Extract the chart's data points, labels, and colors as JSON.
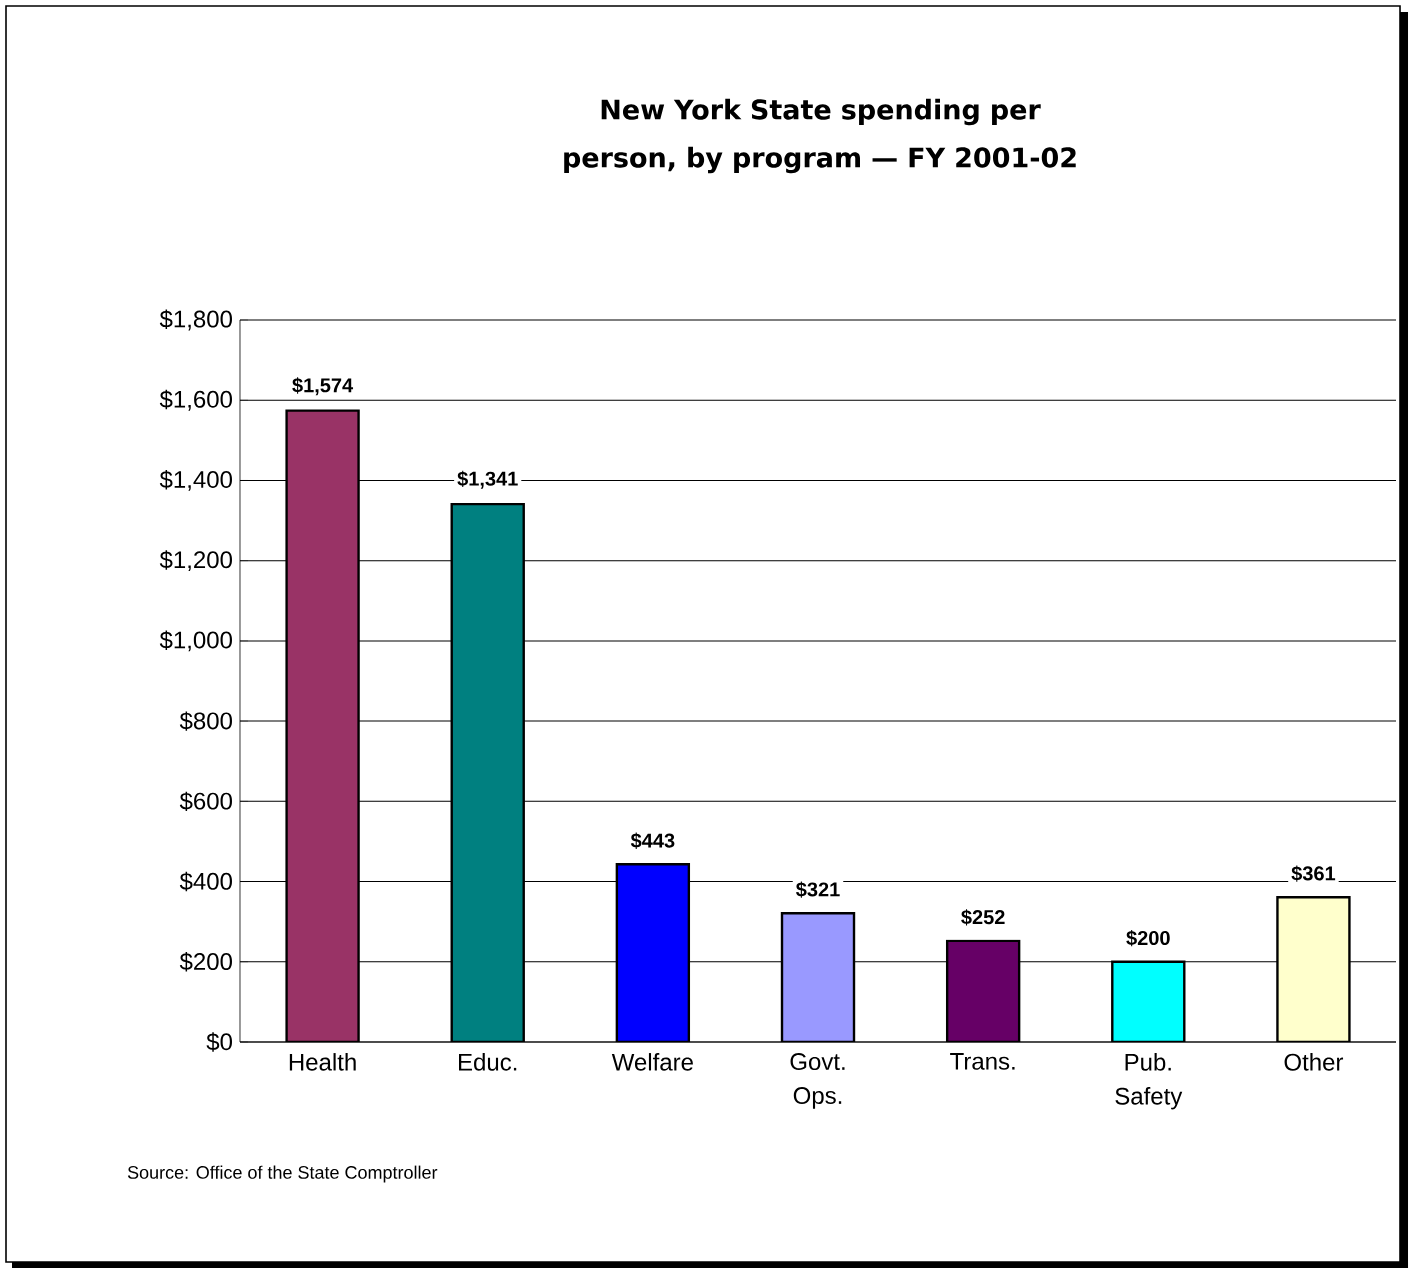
{
  "chart_data": {
    "type": "bar",
    "title": "New York State spending per person, by program — FY 2001-02",
    "categories": [
      "Health",
      "Educ.",
      "Welfare",
      "Govt. Ops.",
      "Trans.",
      "Pub. Safety",
      "Other"
    ],
    "values": [
      1574,
      1341,
      443,
      321,
      252,
      200,
      361
    ],
    "value_labels": [
      "$1,574",
      "$1,341",
      "$443",
      "$321",
      "$252",
      "$200",
      "$361"
    ],
    "colors": [
      "#993366",
      "#008080",
      "#0000ff",
      "#9999ff",
      "#660066",
      "#00ffff",
      "#ffffcc"
    ],
    "ylim": [
      0,
      1800
    ],
    "yticks": [
      {
        "value": 0,
        "label": "$0"
      },
      {
        "value": 200,
        "label": "$200"
      },
      {
        "value": 400,
        "label": "$400"
      },
      {
        "value": 600,
        "label": "$600"
      },
      {
        "value": 800,
        "label": "$800"
      },
      {
        "value": 1000,
        "label": "$1,000"
      },
      {
        "value": 1200,
        "label": "$1,200"
      },
      {
        "value": 1400,
        "label": "$1,400"
      },
      {
        "value": 1600,
        "label": "$1,600"
      },
      {
        "value": 1800,
        "label": "$1,800"
      }
    ],
    "grid": "y",
    "annotations": [
      "Source: Office of the State Comptroller"
    ]
  }
}
